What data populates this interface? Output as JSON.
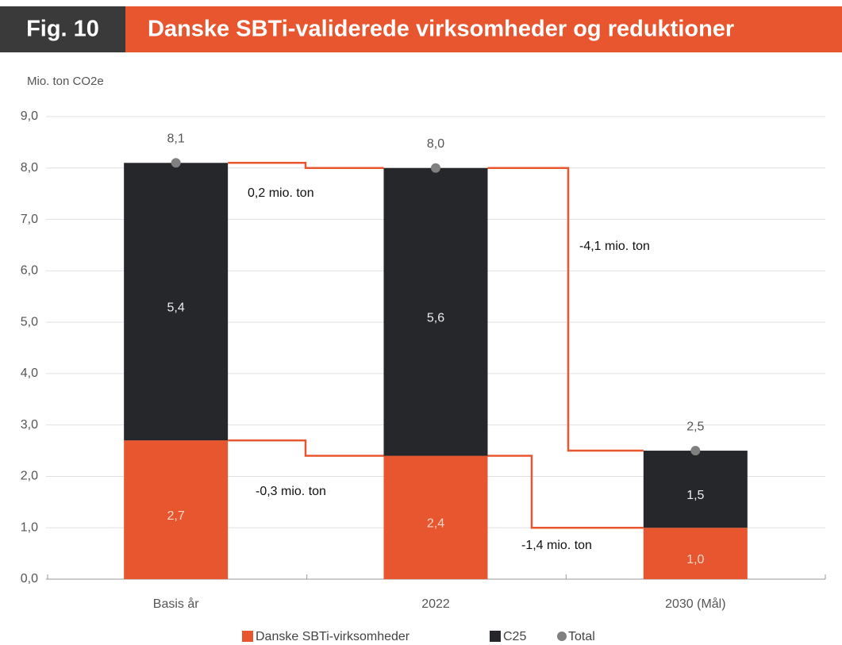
{
  "chart_data": {
    "type": "bar",
    "stacked": true,
    "fig_label": "Fig. 10",
    "title": "Danske SBTi-validerede virksomheder og reduktioner",
    "y_label": "Mio. ton CO2e",
    "categories": [
      "Basis år",
      "2022",
      "2030 (Mål)"
    ],
    "series": [
      {
        "name": "Danske SBTi-virksomheder",
        "color": "#e8562f",
        "values": [
          2.7,
          2.4,
          1.0
        ],
        "value_labels": [
          "2,7",
          "2,4",
          "1,0"
        ]
      },
      {
        "name": "C25",
        "color": "#25272a",
        "values": [
          5.4,
          5.6,
          1.5
        ],
        "value_labels": [
          "5,4",
          "5,6",
          "1,5"
        ]
      },
      {
        "name": "Total",
        "color": "#808080",
        "style": "point",
        "values": [
          8.1,
          8.0,
          2.5
        ],
        "value_labels": [
          "8,1",
          "8,0",
          "2,5"
        ]
      }
    ],
    "annotations": [
      "0,2 mio. ton",
      "-4,1 mio. ton",
      "-0,3 mio. ton",
      "-1,4 mio. ton"
    ],
    "connector_color": "#e8562f",
    "ylim": [
      0,
      9
    ],
    "yticks": [
      {
        "value": 0,
        "label": "0,0"
      },
      {
        "value": 1,
        "label": "1,0"
      },
      {
        "value": 2,
        "label": "2,0"
      },
      {
        "value": 3,
        "label": "3,0"
      },
      {
        "value": 4,
        "label": "4,0"
      },
      {
        "value": 5,
        "label": "5,0"
      },
      {
        "value": 6,
        "label": "6,0"
      },
      {
        "value": 7,
        "label": "7,0"
      },
      {
        "value": 8,
        "label": "8,0"
      },
      {
        "value": 9,
        "label": "9,0"
      }
    ],
    "grid": true
  }
}
